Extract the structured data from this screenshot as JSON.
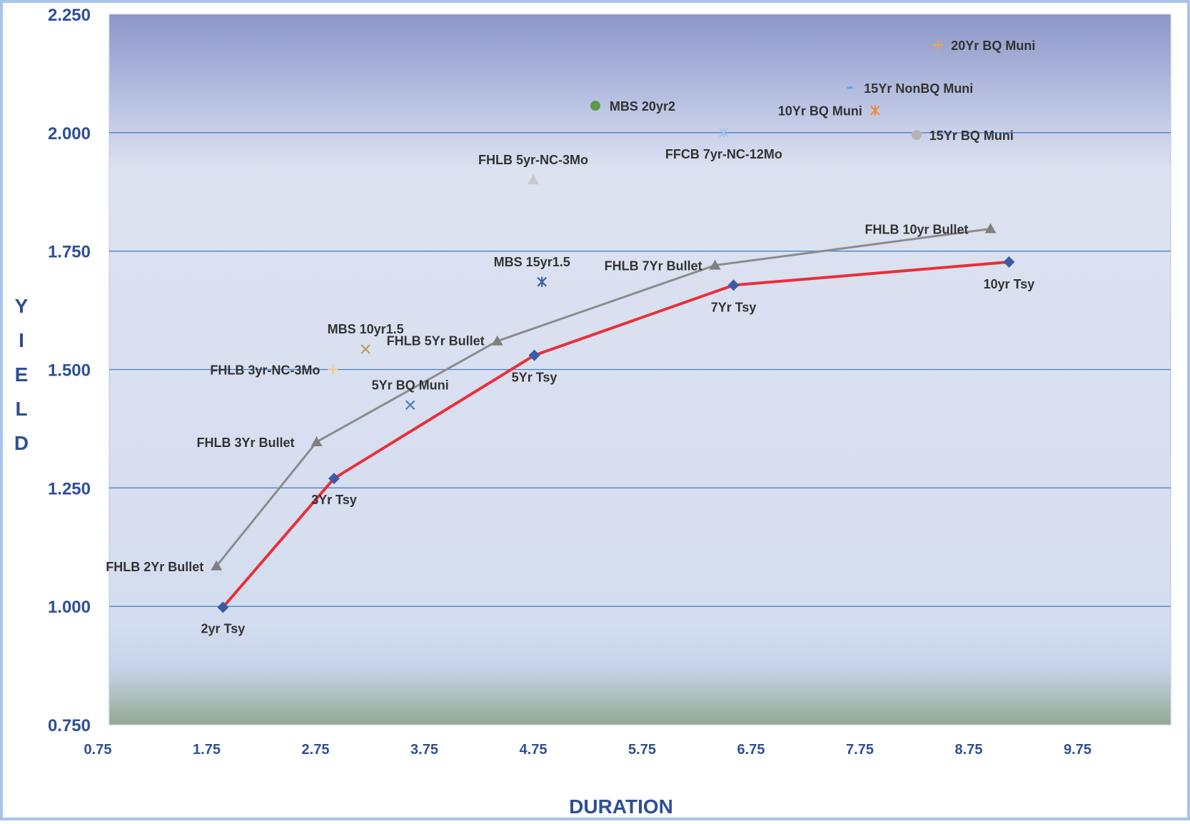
{
  "chart_data": {
    "type": "scatter",
    "title": "",
    "xlabel": "DURATION",
    "ylabel": "YIELD",
    "ylabel_letters": [
      "Y",
      "I",
      "E",
      "L",
      "D"
    ],
    "xlim": [
      0.75,
      10.5
    ],
    "ylim": [
      0.75,
      2.25
    ],
    "x_ticks": [
      0.75,
      1.75,
      2.75,
      3.75,
      4.75,
      5.75,
      6.75,
      7.75,
      8.75,
      9.75
    ],
    "x_tick_labels": [
      "0.75",
      "1.75",
      "2.75",
      "3.75",
      "4.75",
      "5.75",
      "6.75",
      "7.75",
      "8.75",
      "9.75"
    ],
    "y_ticks": [
      0.75,
      1.0,
      1.25,
      1.5,
      1.75,
      2.0,
      2.25
    ],
    "y_tick_labels": [
      "0.750",
      "1.000",
      "1.250",
      "1.500",
      "1.750",
      "2.000",
      "2.250"
    ],
    "grid": "horizontal",
    "legend": "none",
    "colors": {
      "treasury_line": "#e8303a",
      "treasury_marker": "#3a5ba8",
      "fhlb_line": "#8c8c8c",
      "fhlb_marker": "#808080",
      "axis_text": "#2e4f96",
      "point_label": "#333333",
      "grid": "#4f7fc4",
      "frame": "#a9c4e8"
    },
    "series": [
      {
        "marker": "diamond",
        "line": true,
        "color": "#e8303a",
        "points": [
          {
            "label": "2yr Tsy",
            "x": 1.9,
            "y": 0.998
          },
          {
            "label": "3Yr Tsy",
            "x": 2.92,
            "y": 1.27
          },
          {
            "label": "5Yr Tsy",
            "x": 4.76,
            "y": 1.53
          },
          {
            "label": "7Yr Tsy",
            "x": 6.59,
            "y": 1.678
          },
          {
            "label": "10yr Tsy",
            "x": 9.12,
            "y": 1.727
          }
        ]
      },
      {
        "marker": "triangle",
        "line": true,
        "color": "#8c8c8c",
        "points": [
          {
            "label": "FHLB 2Yr Bullet",
            "x": 1.84,
            "y": 1.085
          },
          {
            "label": "FHLB 3Yr Bullet",
            "x": 2.76,
            "y": 1.347
          },
          {
            "label": "FHLB 5Yr Bullet",
            "x": 4.42,
            "y": 1.56
          },
          {
            "label": "FHLB 7Yr Bullet",
            "x": 6.42,
            "y": 1.72
          },
          {
            "label": "FHLB 10yr Bullet",
            "x": 8.95,
            "y": 1.797
          }
        ]
      }
    ],
    "points": [
      {
        "label": "FHLB 3yr-NC-3Mo",
        "x": 2.91,
        "y": 1.5,
        "marker": "plus",
        "color": "#f2c88a"
      },
      {
        "label": "MBS 10yr1.5",
        "x": 3.21,
        "y": 1.543,
        "marker": "x",
        "color": "#c49a5a"
      },
      {
        "label": "5Yr BQ Muni",
        "x": 3.62,
        "y": 1.425,
        "marker": "x",
        "color": "#4a78c0"
      },
      {
        "label": "MBS 15yr1.5",
        "x": 4.83,
        "y": 1.685,
        "marker": "asterisk",
        "color": "#3a60a8"
      },
      {
        "label": "FHLB 5yr-NC-3Mo",
        "x": 4.75,
        "y": 1.9,
        "marker": "triangle",
        "color": "#c8c8c8"
      },
      {
        "label": "MBS 20yr2",
        "x": 5.32,
        "y": 2.057,
        "marker": "circle",
        "color": "#5a9a48"
      },
      {
        "label": "FFCB 7yr-NC-12Mo",
        "x": 6.5,
        "y": 2.0,
        "marker": "asterisk",
        "color": "#a8c4ec"
      },
      {
        "label": "10Yr BQ Muni",
        "x": 7.89,
        "y": 2.047,
        "marker": "asterisk",
        "color": "#f08a3c"
      },
      {
        "label": "15Yr NonBQ Muni",
        "x": 7.67,
        "y": 2.095,
        "marker": "dash",
        "color": "#5aaadc"
      },
      {
        "label": "15Yr BQ Muni",
        "x": 8.27,
        "y": 1.995,
        "marker": "circle",
        "color": "#b4b4b4"
      },
      {
        "label": "20Yr BQ Muni",
        "x": 8.47,
        "y": 2.185,
        "marker": "plus",
        "color": "#e8a850"
      }
    ]
  }
}
